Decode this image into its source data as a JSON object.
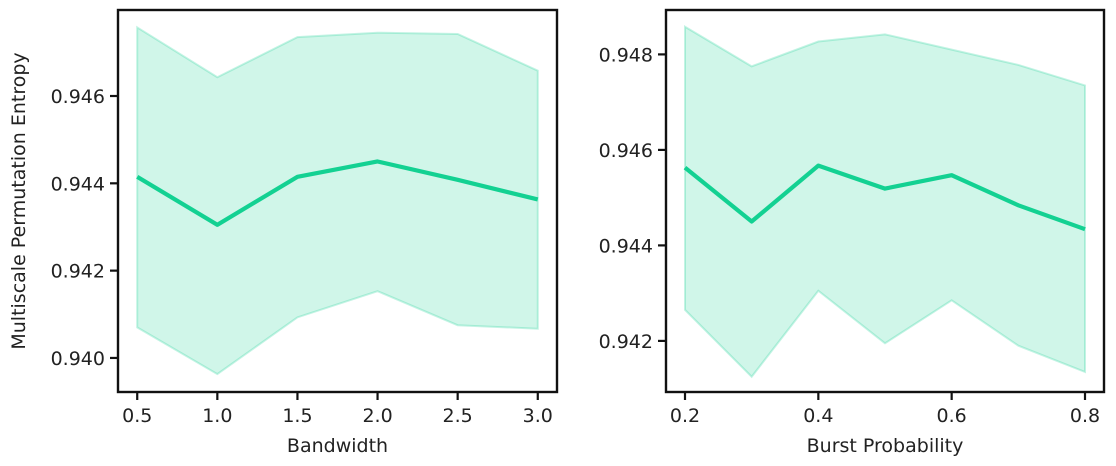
{
  "chart_data": [
    {
      "type": "line",
      "xlabel": "Bandwidth",
      "ylabel": "Multiscale Permutation Entropy",
      "x": [
        0.5,
        1.0,
        1.5,
        2.0,
        2.5,
        3.0
      ],
      "series": [
        {
          "values": [
            0.94415,
            0.94305,
            0.94415,
            0.9445,
            0.94408,
            0.94363
          ],
          "lower": [
            0.9407,
            0.93963,
            0.94093,
            0.94153,
            0.94075,
            0.94067
          ],
          "upper": [
            0.94757,
            0.94643,
            0.94735,
            0.94745,
            0.94742,
            0.94658
          ]
        }
      ],
      "xlim": [
        0.38,
        3.12
      ],
      "ylim": [
        0.93922,
        0.94797
      ],
      "xticks": [
        0.5,
        1.0,
        1.5,
        2.0,
        2.5,
        3.0
      ],
      "xtick_labels": [
        "0.5",
        "1.0",
        "1.5",
        "2.0",
        "2.5",
        "3.0"
      ],
      "yticks": [
        0.94,
        0.942,
        0.944,
        0.946
      ],
      "ytick_labels": [
        "0.940",
        "0.942",
        "0.944",
        "0.946"
      ],
      "grid": false,
      "line_color": "#13d192",
      "band_color": "#13d192"
    },
    {
      "type": "line",
      "xlabel": "Burst Probability",
      "ylabel": "",
      "x": [
        0.2,
        0.3,
        0.4,
        0.5,
        0.6,
        0.7,
        0.8
      ],
      "series": [
        {
          "values": [
            0.94563,
            0.9445,
            0.94567,
            0.94519,
            0.94547,
            0.94484,
            0.94434
          ],
          "lower": [
            0.94265,
            0.94125,
            0.94305,
            0.94195,
            0.94285,
            0.9419,
            0.94135
          ],
          "upper": [
            0.94858,
            0.94775,
            0.94827,
            0.94842,
            0.9481,
            0.94778,
            0.94735
          ]
        }
      ],
      "xlim": [
        0.1715,
        0.8285
      ],
      "ylim": [
        0.94093,
        0.94893
      ],
      "xticks": [
        0.2,
        0.4,
        0.6,
        0.8
      ],
      "xtick_labels": [
        "0.2",
        "0.4",
        "0.6",
        "0.8"
      ],
      "yticks": [
        0.942,
        0.944,
        0.946,
        0.948
      ],
      "ytick_labels": [
        "0.942",
        "0.944",
        "0.946",
        "0.948"
      ],
      "grid": false,
      "line_color": "#13d192",
      "band_color": "#13d192"
    }
  ]
}
